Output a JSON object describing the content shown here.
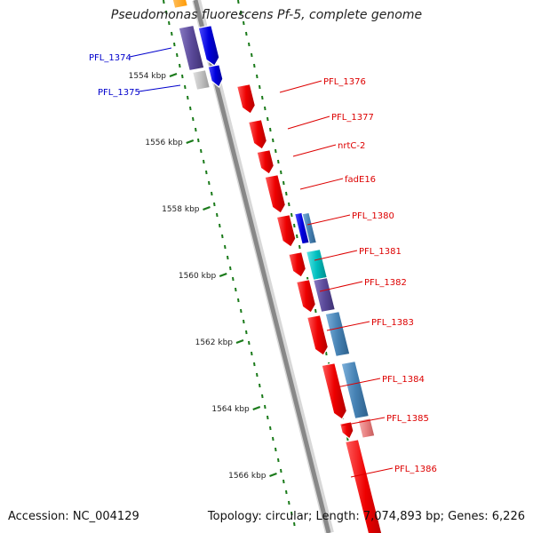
{
  "title": "Pseudomonas fluorescens Pf-5, complete genome",
  "footer": {
    "accession": "Accession: NC_004129",
    "summary": "Topology: circular; Length: 7,074,893 bp; Genes: 6,226"
  },
  "ticks": [
    "1554 kbp",
    "1556 kbp",
    "1558 kbp",
    "1560 kbp",
    "1562 kbp",
    "1564 kbp",
    "1566 kbp"
  ],
  "genes_left": [
    "PFL_1374",
    "PFL_1375"
  ],
  "genes_right": [
    "PFL_1376",
    "PFL_1377",
    "nrtC-2",
    "fadE16",
    "PFL_1380",
    "PFL_1381",
    "PFL_1382",
    "PFL_1383",
    "PFL_1384",
    "PFL_1385",
    "PFL_1386"
  ],
  "colors": {
    "reverse_strand_label": "#0000cc",
    "forward_strand_label": "#dd0000",
    "cds_red": "#ee0000",
    "cds_blue": "#0000dd",
    "cog_steelblue": "#4682b4",
    "cog_slate": "#5b4a9a",
    "cog_cyan": "#00bfbf",
    "cog_pink": "#e88080",
    "backbone": "#888888",
    "tick_green": "#1a7a1a"
  }
}
